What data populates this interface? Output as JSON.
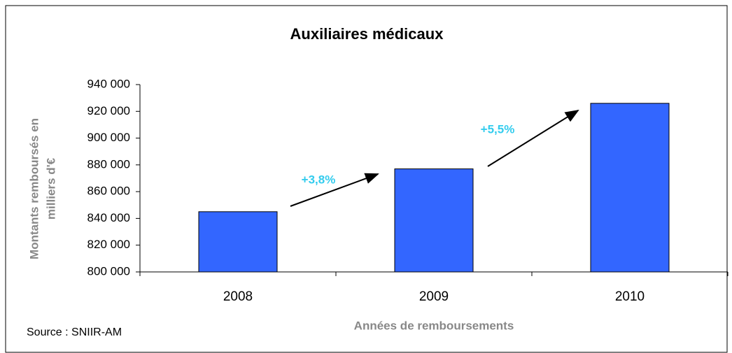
{
  "chart_data": {
    "type": "bar",
    "title": "Auxiliaires médicaux",
    "categories": [
      "2008",
      "2009",
      "2010"
    ],
    "values": [
      845000,
      877000,
      926000
    ],
    "color": "#3366ff",
    "ylim": [
      800000,
      940000
    ],
    "yticks": [
      {
        "value": 800000,
        "label": "800 000"
      },
      {
        "value": 820000,
        "label": "820 000"
      },
      {
        "value": 840000,
        "label": "840 000"
      },
      {
        "value": 860000,
        "label": "860 000"
      },
      {
        "value": 880000,
        "label": "880 000"
      },
      {
        "value": 900000,
        "label": "900 000"
      },
      {
        "value": 920000,
        "label": "920 000"
      },
      {
        "value": 940000,
        "label": "940 000"
      }
    ],
    "grid": false,
    "y_label": [
      "Montants remboursés en",
      "milliers d'€"
    ],
    "x_label": "Années de remboursements",
    "annotations": [
      "+3,8%",
      "+5,5%"
    ],
    "source": "Source : SNIIR-AM"
  }
}
